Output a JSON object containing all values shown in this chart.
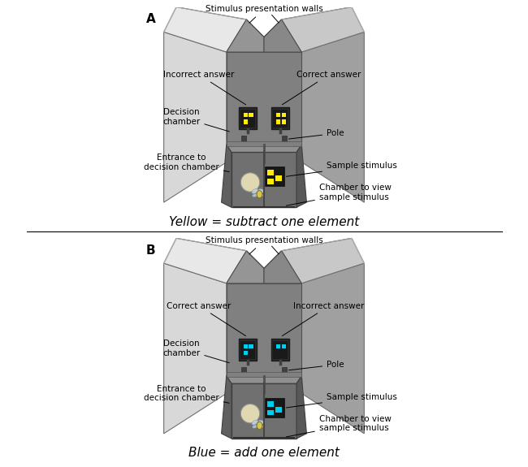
{
  "panel_A_label": "A",
  "panel_B_label": "B",
  "subtitle_A": "Yellow = subtract one element",
  "subtitle_B": "Blue = add one element",
  "labels_A": {
    "stimulus_walls": "Stimulus presentation walls",
    "incorrect": "Incorrect answer",
    "correct": "Correct answer",
    "decision_chamber": "Decision\nchamber",
    "entrance": "Entrance to\ndecision chamber",
    "pole": "Pole",
    "sample_stimulus": "Sample stimulus",
    "chamber_view": "Chamber to view\nsample stimulus"
  },
  "labels_B": {
    "stimulus_walls": "Stimulus presentation walls",
    "correct": "Correct answer",
    "incorrect": "Incorrect answer",
    "decision_chamber": "Decision\nchamber",
    "entrance": "Entrance to\ndecision chamber",
    "pole": "Pole",
    "sample_stimulus": "Sample stimulus",
    "chamber_view": "Chamber to view\nsample stimulus"
  },
  "colors": {
    "background": "#ffffff",
    "wall_dark": "#808080",
    "wall_medium": "#a0a0a0",
    "wall_light": "#c8c8c8",
    "wall_lighter": "#d8d8d8",
    "wall_lightest": "#e8e8e8",
    "yellow": "#ffee00",
    "cyan": "#00ccee",
    "hole_color": "#e0d8b0",
    "separator_line": "#000000"
  },
  "font_sizes": {
    "panel_label": 11,
    "annotation": 7.5,
    "subtitle": 11
  }
}
